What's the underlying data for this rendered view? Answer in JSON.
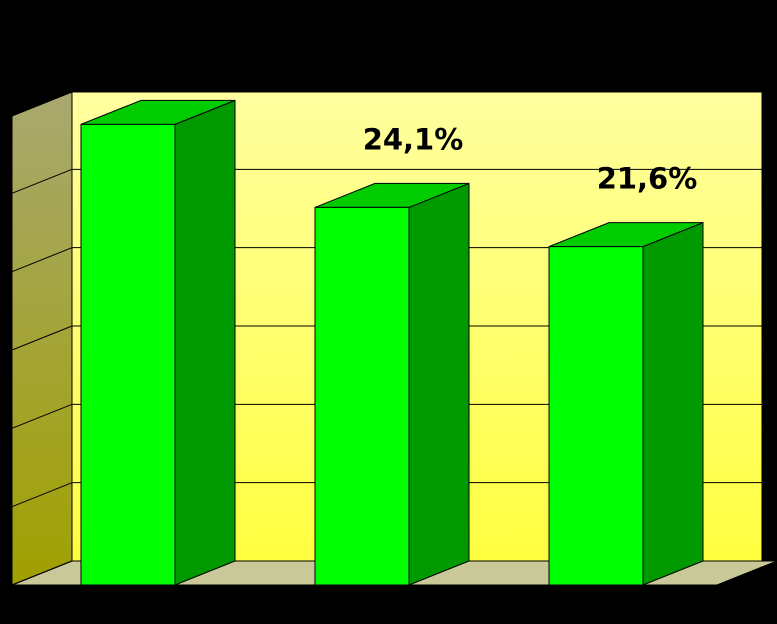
{
  "chart_data": {
    "type": "bar3d",
    "categories": [
      null,
      null,
      null
    ],
    "values": [
      29.4,
      24.1,
      21.6
    ],
    "value_labels": [
      null,
      "24,1%",
      "21,6%"
    ],
    "color": "#00ff00",
    "ylim": [
      0,
      30
    ],
    "yticks": [
      0,
      5,
      10,
      15,
      20,
      25,
      30
    ],
    "grid": true
  }
}
